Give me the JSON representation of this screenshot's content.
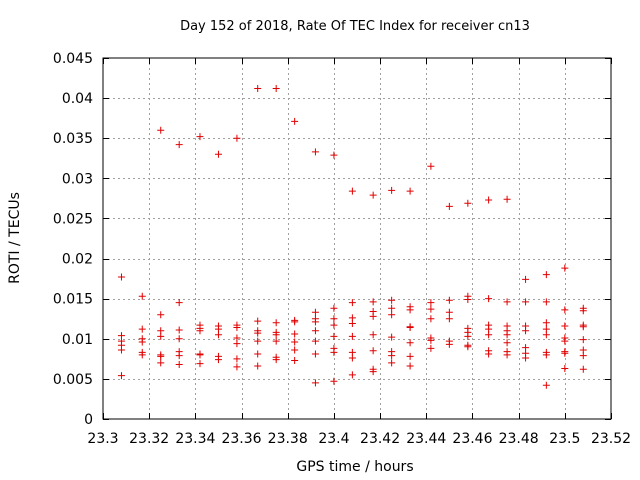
{
  "chart_data": {
    "type": "scatter",
    "title": "Day 152 of 2018, Rate Of TEC Index for receiver cn13",
    "xlabel": "GPS time / hours",
    "ylabel": "ROTI / TECUs",
    "xlim": [
      23.3,
      23.52
    ],
    "ylim": [
      0,
      0.045
    ],
    "grid": true,
    "marker": "+",
    "color": "#e00000",
    "xticks": [
      23.3,
      23.32,
      23.34,
      23.36,
      23.38,
      23.4,
      23.42,
      23.44,
      23.46,
      23.48,
      23.5,
      23.52
    ],
    "xtick_labels": [
      "23.3",
      "23.32",
      "23.34",
      "23.36",
      "23.38",
      "23.4",
      "23.42",
      "23.44",
      "23.46",
      "23.48",
      "23.5",
      "23.52"
    ],
    "yticks": [
      0,
      0.005,
      0.01,
      0.015,
      0.02,
      0.025,
      0.03,
      0.035,
      0.04,
      0.045
    ],
    "ytick_labels": [
      "0",
      "0.005",
      "0.01",
      "0.015",
      "0.02",
      "0.025",
      "0.03",
      "0.035",
      "0.04",
      "0.045"
    ],
    "series": [
      {
        "name": "ROTI",
        "points": [
          [
            23.308,
            0.0177
          ],
          [
            23.308,
            0.0104
          ],
          [
            23.308,
            0.0097
          ],
          [
            23.308,
            0.0092
          ],
          [
            23.308,
            0.0086
          ],
          [
            23.308,
            0.0054
          ],
          [
            23.317,
            0.0153
          ],
          [
            23.317,
            0.0112
          ],
          [
            23.317,
            0.01
          ],
          [
            23.317,
            0.0096
          ],
          [
            23.317,
            0.0083
          ],
          [
            23.317,
            0.008
          ],
          [
            23.325,
            0.036
          ],
          [
            23.325,
            0.013
          ],
          [
            23.325,
            0.011
          ],
          [
            23.325,
            0.0103
          ],
          [
            23.325,
            0.008
          ],
          [
            23.325,
            0.0078
          ],
          [
            23.325,
            0.007
          ],
          [
            23.333,
            0.0342
          ],
          [
            23.333,
            0.0145
          ],
          [
            23.333,
            0.0111
          ],
          [
            23.333,
            0.01
          ],
          [
            23.333,
            0.0084
          ],
          [
            23.333,
            0.0079
          ],
          [
            23.333,
            0.0068
          ],
          [
            23.342,
            0.0352
          ],
          [
            23.342,
            0.0117
          ],
          [
            23.342,
            0.0113
          ],
          [
            23.342,
            0.011
          ],
          [
            23.342,
            0.0081
          ],
          [
            23.342,
            0.008
          ],
          [
            23.342,
            0.0069
          ],
          [
            23.35,
            0.033
          ],
          [
            23.35,
            0.0116
          ],
          [
            23.35,
            0.0112
          ],
          [
            23.35,
            0.0105
          ],
          [
            23.35,
            0.0078
          ],
          [
            23.35,
            0.0074
          ],
          [
            23.358,
            0.035
          ],
          [
            23.358,
            0.0117
          ],
          [
            23.358,
            0.0114
          ],
          [
            23.358,
            0.0101
          ],
          [
            23.358,
            0.0094
          ],
          [
            23.358,
            0.0075
          ],
          [
            23.358,
            0.0065
          ],
          [
            23.367,
            0.0412
          ],
          [
            23.367,
            0.0122
          ],
          [
            23.367,
            0.011
          ],
          [
            23.367,
            0.0107
          ],
          [
            23.367,
            0.0097
          ],
          [
            23.367,
            0.0081
          ],
          [
            23.367,
            0.0066
          ],
          [
            23.375,
            0.0412
          ],
          [
            23.375,
            0.012
          ],
          [
            23.375,
            0.0108
          ],
          [
            23.375,
            0.0105
          ],
          [
            23.375,
            0.0097
          ],
          [
            23.375,
            0.0077
          ],
          [
            23.375,
            0.0074
          ],
          [
            23.383,
            0.0371
          ],
          [
            23.383,
            0.0123
          ],
          [
            23.383,
            0.0121
          ],
          [
            23.383,
            0.0106
          ],
          [
            23.383,
            0.0096
          ],
          [
            23.383,
            0.0086
          ],
          [
            23.383,
            0.0073
          ],
          [
            23.392,
            0.0333
          ],
          [
            23.392,
            0.0133
          ],
          [
            23.392,
            0.0125
          ],
          [
            23.392,
            0.0121
          ],
          [
            23.392,
            0.011
          ],
          [
            23.392,
            0.0097
          ],
          [
            23.392,
            0.0081
          ],
          [
            23.392,
            0.0045
          ],
          [
            23.4,
            0.0329
          ],
          [
            23.4,
            0.0138
          ],
          [
            23.4,
            0.0125
          ],
          [
            23.4,
            0.0117
          ],
          [
            23.4,
            0.0103
          ],
          [
            23.4,
            0.0088
          ],
          [
            23.4,
            0.0083
          ],
          [
            23.4,
            0.0047
          ],
          [
            23.408,
            0.0284
          ],
          [
            23.408,
            0.0145
          ],
          [
            23.408,
            0.0126
          ],
          [
            23.408,
            0.0119
          ],
          [
            23.408,
            0.0103
          ],
          [
            23.408,
            0.0083
          ],
          [
            23.408,
            0.0076
          ],
          [
            23.408,
            0.0055
          ],
          [
            23.417,
            0.0279
          ],
          [
            23.417,
            0.0146
          ],
          [
            23.417,
            0.0134
          ],
          [
            23.417,
            0.0128
          ],
          [
            23.417,
            0.0105
          ],
          [
            23.417,
            0.0085
          ],
          [
            23.417,
            0.0062
          ],
          [
            23.417,
            0.0059
          ],
          [
            23.425,
            0.0285
          ],
          [
            23.425,
            0.0148
          ],
          [
            23.425,
            0.0138
          ],
          [
            23.425,
            0.013
          ],
          [
            23.425,
            0.0102
          ],
          [
            23.425,
            0.0084
          ],
          [
            23.425,
            0.0079
          ],
          [
            23.425,
            0.007
          ],
          [
            23.433,
            0.0284
          ],
          [
            23.433,
            0.014
          ],
          [
            23.433,
            0.0136
          ],
          [
            23.433,
            0.0115
          ],
          [
            23.433,
            0.0114
          ],
          [
            23.433,
            0.0095
          ],
          [
            23.433,
            0.0078
          ],
          [
            23.433,
            0.0066
          ],
          [
            23.442,
            0.0315
          ],
          [
            23.442,
            0.0145
          ],
          [
            23.442,
            0.0137
          ],
          [
            23.442,
            0.0125
          ],
          [
            23.442,
            0.0101
          ],
          [
            23.442,
            0.0098
          ],
          [
            23.442,
            0.0088
          ],
          [
            23.45,
            0.0265
          ],
          [
            23.45,
            0.0148
          ],
          [
            23.45,
            0.0133
          ],
          [
            23.45,
            0.0125
          ],
          [
            23.45,
            0.0097
          ],
          [
            23.45,
            0.0093
          ],
          [
            23.458,
            0.0269
          ],
          [
            23.458,
            0.0153
          ],
          [
            23.458,
            0.0149
          ],
          [
            23.458,
            0.0113
          ],
          [
            23.458,
            0.0108
          ],
          [
            23.458,
            0.0103
          ],
          [
            23.458,
            0.0092
          ],
          [
            23.458,
            0.009
          ],
          [
            23.467,
            0.0273
          ],
          [
            23.467,
            0.015
          ],
          [
            23.467,
            0.0117
          ],
          [
            23.467,
            0.0112
          ],
          [
            23.467,
            0.0105
          ],
          [
            23.467,
            0.0085
          ],
          [
            23.467,
            0.0081
          ],
          [
            23.475,
            0.0274
          ],
          [
            23.475,
            0.0146
          ],
          [
            23.475,
            0.0116
          ],
          [
            23.475,
            0.011
          ],
          [
            23.475,
            0.0105
          ],
          [
            23.475,
            0.0095
          ],
          [
            23.475,
            0.0084
          ],
          [
            23.475,
            0.008
          ],
          [
            23.483,
            0.0174
          ],
          [
            23.483,
            0.0146
          ],
          [
            23.483,
            0.0116
          ],
          [
            23.483,
            0.011
          ],
          [
            23.483,
            0.0089
          ],
          [
            23.483,
            0.0082
          ],
          [
            23.483,
            0.0076
          ],
          [
            23.492,
            0.018
          ],
          [
            23.492,
            0.0146
          ],
          [
            23.492,
            0.012
          ],
          [
            23.492,
            0.0112
          ],
          [
            23.492,
            0.0105
          ],
          [
            23.492,
            0.0083
          ],
          [
            23.492,
            0.008
          ],
          [
            23.492,
            0.0042
          ],
          [
            23.5,
            0.0188
          ],
          [
            23.5,
            0.0136
          ],
          [
            23.5,
            0.0116
          ],
          [
            23.5,
            0.0101
          ],
          [
            23.5,
            0.0097
          ],
          [
            23.5,
            0.0084
          ],
          [
            23.5,
            0.0082
          ],
          [
            23.5,
            0.0063
          ],
          [
            23.508,
            0.0138
          ],
          [
            23.508,
            0.0135
          ],
          [
            23.508,
            0.0117
          ],
          [
            23.508,
            0.0115
          ],
          [
            23.508,
            0.0099
          ],
          [
            23.508,
            0.0086
          ],
          [
            23.508,
            0.0079
          ],
          [
            23.508,
            0.0062
          ]
        ]
      }
    ]
  }
}
